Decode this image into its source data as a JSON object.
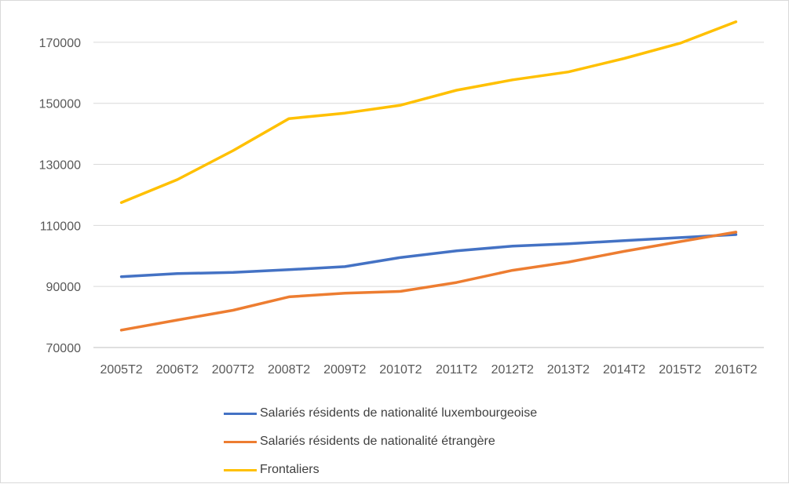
{
  "chart_data": {
    "type": "line",
    "title": "",
    "xlabel": "",
    "ylabel": "",
    "categories": [
      "2005T2",
      "2006T2",
      "2007T2",
      "2008T2",
      "2009T2",
      "2010T2",
      "2011T2",
      "2012T2",
      "2013T2",
      "2014T2",
      "2015T2",
      "2016T2"
    ],
    "ylim": [
      70000,
      180000
    ],
    "yticks": [
      70000,
      90000,
      110000,
      130000,
      150000,
      170000
    ],
    "grid": true,
    "legend_position": "bottom",
    "series": [
      {
        "name": "Salariés résidents de nationalité luxembourgeoise",
        "color": "#4472c4",
        "values": [
          93200,
          94200,
          94600,
          95500,
          96500,
          99500,
          101700,
          103200,
          104000,
          105000,
          106000,
          107000
        ]
      },
      {
        "name": "Salariés résidents de nationalité étrangère",
        "color": "#ed7d31",
        "values": [
          75700,
          79000,
          82200,
          86600,
          87800,
          88400,
          91300,
          95300,
          98000,
          101500,
          104700,
          107800
        ]
      },
      {
        "name": "Frontaliers",
        "color": "#ffc000",
        "values": [
          117500,
          125000,
          134500,
          145000,
          146800,
          149400,
          154300,
          157700,
          160300,
          164700,
          169700,
          176700
        ]
      }
    ]
  }
}
